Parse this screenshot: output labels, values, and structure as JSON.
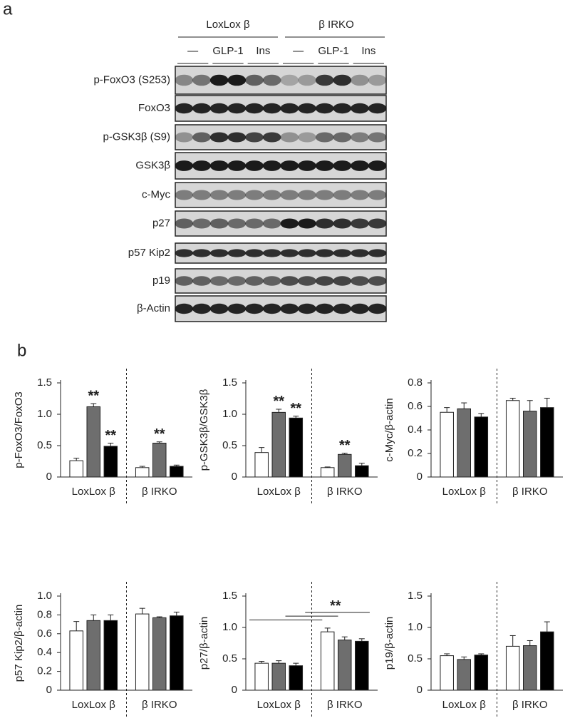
{
  "panel_a": {
    "label": "a",
    "groups": [
      "LoxLox β",
      "β IRKO"
    ],
    "lanes": [
      "—",
      "GLP-1",
      "Ins",
      "—",
      "GLP-1",
      "Ins"
    ],
    "rows": [
      "p-FoxO3 (S253)",
      "FoxO3",
      "p-GSK3β (S9)",
      "GSK3β",
      "c-Myc",
      "p27",
      "p57 Kip2",
      "p19",
      "β-Actin"
    ]
  },
  "panel_b_label": "b",
  "chart_data": [
    {
      "type": "bar",
      "ylabel": "p-FoxO3/FoxO3",
      "categories": [
        "LoxLox β",
        "β IRKO"
      ],
      "ylim": [
        0,
        1.5
      ],
      "yticks": [
        0,
        0.5,
        {
          "value": 1,
          "label": "1.0"
        },
        1.5
      ],
      "series": [
        {
          "color": "#ffffff",
          "values": [
            0.26,
            0.15
          ],
          "errors": [
            0.04,
            0.02
          ],
          "annotations": [
            null,
            null
          ]
        },
        {
          "color": "#6e6e6e",
          "values": [
            1.12,
            0.54
          ],
          "errors": [
            0.05,
            0.02
          ],
          "annotations": [
            "**",
            "**"
          ]
        },
        {
          "color": "#000000",
          "values": [
            0.49,
            0.17
          ],
          "errors": [
            0.05,
            0.02
          ],
          "annotations": [
            "**",
            null
          ]
        }
      ]
    },
    {
      "type": "bar",
      "ylabel": "p-GSK3β/GSK3β",
      "categories": [
        "LoxLox β",
        "β IRKO"
      ],
      "ylim": [
        0,
        1.5
      ],
      "yticks": [
        0,
        0.5,
        {
          "value": 1,
          "label": "1.0"
        },
        1.5
      ],
      "series": [
        {
          "color": "#ffffff",
          "values": [
            0.39,
            0.15
          ],
          "errors": [
            0.08,
            0.01
          ],
          "annotations": [
            null,
            null
          ]
        },
        {
          "color": "#6e6e6e",
          "values": [
            1.03,
            0.36
          ],
          "errors": [
            0.05,
            0.02
          ],
          "annotations": [
            "**",
            "**"
          ]
        },
        {
          "color": "#000000",
          "values": [
            0.94,
            0.18
          ],
          "errors": [
            0.03,
            0.04
          ],
          "annotations": [
            "**",
            null
          ]
        }
      ]
    },
    {
      "type": "bar",
      "ylabel": "c-Myc/β-actin",
      "categories": [
        "LoxLox β",
        "β IRKO"
      ],
      "ylim": [
        0,
        0.8
      ],
      "yticks": [
        0,
        0.2,
        0.4,
        0.6,
        0.8
      ],
      "series": [
        {
          "color": "#ffffff",
          "values": [
            0.55,
            0.65
          ],
          "errors": [
            0.04,
            0.02
          ]
        },
        {
          "color": "#6e6e6e",
          "values": [
            0.58,
            0.56
          ],
          "errors": [
            0.05,
            0.09
          ]
        },
        {
          "color": "#000000",
          "values": [
            0.51,
            0.59
          ],
          "errors": [
            0.03,
            0.08
          ]
        }
      ]
    },
    {
      "type": "bar",
      "ylabel": "p57 Kip2/β-actin",
      "categories": [
        "LoxLox β",
        "β IRKO"
      ],
      "ylim": [
        0,
        1
      ],
      "yticks": [
        0,
        0.2,
        0.4,
        0.6,
        0.8,
        {
          "value": 1,
          "label": "1.0"
        }
      ],
      "series": [
        {
          "color": "#ffffff",
          "values": [
            0.63,
            0.81
          ],
          "errors": [
            0.1,
            0.06
          ]
        },
        {
          "color": "#6e6e6e",
          "values": [
            0.74,
            0.77
          ],
          "errors": [
            0.06,
            0.01
          ]
        },
        {
          "color": "#000000",
          "values": [
            0.74,
            0.79
          ],
          "errors": [
            0.06,
            0.04
          ]
        }
      ]
    },
    {
      "type": "bar",
      "ylabel": "p27/β-actin",
      "categories": [
        "LoxLox β",
        "β IRKO"
      ],
      "ylim": [
        0,
        1.5
      ],
      "yticks": [
        0,
        0.5,
        {
          "value": 1,
          "label": "1.0"
        },
        1.5
      ],
      "annotation": "**",
      "series": [
        {
          "color": "#ffffff",
          "values": [
            0.43,
            0.93
          ],
          "errors": [
            0.03,
            0.06
          ]
        },
        {
          "color": "#6e6e6e",
          "values": [
            0.43,
            0.8
          ],
          "errors": [
            0.04,
            0.05
          ]
        },
        {
          "color": "#000000",
          "values": [
            0.39,
            0.78
          ],
          "errors": [
            0.04,
            0.04
          ]
        }
      ]
    },
    {
      "type": "bar",
      "ylabel": "p19/β-actin",
      "categories": [
        "LoxLox β",
        "β IRKO"
      ],
      "ylim": [
        0,
        1.5
      ],
      "yticks": [
        0,
        0.5,
        {
          "value": 1,
          "label": "1.0"
        },
        1.5
      ],
      "series": [
        {
          "color": "#ffffff",
          "values": [
            0.55,
            0.7
          ],
          "errors": [
            0.03,
            0.17
          ]
        },
        {
          "color": "#6e6e6e",
          "values": [
            0.49,
            0.71
          ],
          "errors": [
            0.04,
            0.08
          ]
        },
        {
          "color": "#000000",
          "values": [
            0.56,
            0.93
          ],
          "errors": [
            0.02,
            0.16
          ]
        }
      ]
    }
  ]
}
